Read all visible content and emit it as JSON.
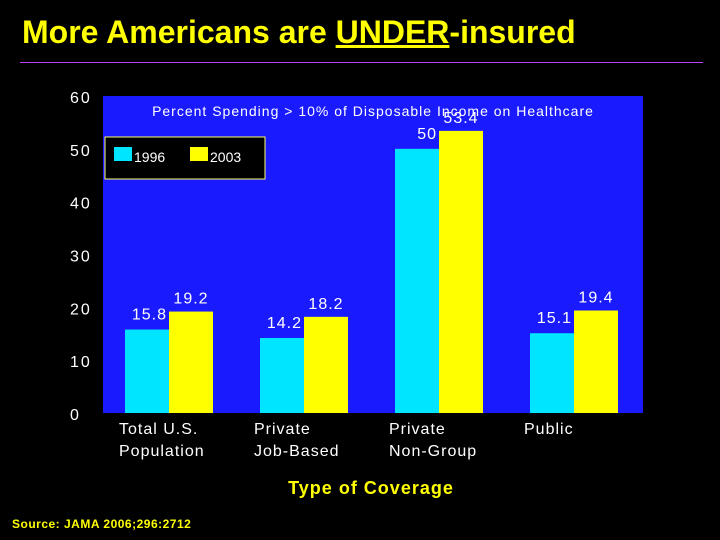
{
  "slide": {
    "title_pre": "More Americans are ",
    "title_underlined": "UNDER",
    "title_post": "-insured",
    "source": "Source: JAMA 2006;296:2712"
  },
  "chart_data": {
    "type": "bar",
    "title": "Percent Spending > 10% of Disposable Income on Healthcare",
    "xlabel": "Type of Coverage",
    "ylabel": "",
    "ylim": [
      0,
      60
    ],
    "yticks": [
      0,
      10,
      20,
      30,
      40,
      50,
      60
    ],
    "categories": [
      [
        "Total U.S.",
        "Population"
      ],
      [
        "Private",
        "Job-Based"
      ],
      [
        "Private",
        "Non-Group"
      ],
      [
        "Public"
      ]
    ],
    "series": [
      {
        "name": "1996",
        "color": "#00e5ff",
        "values": [
          15.8,
          14.2,
          50,
          15.1
        ]
      },
      {
        "name": "2003",
        "color": "#ffff00",
        "values": [
          19.2,
          18.2,
          53.4,
          19.4
        ]
      }
    ],
    "legend": "top-left",
    "plot_bg": "#1a1aff"
  }
}
